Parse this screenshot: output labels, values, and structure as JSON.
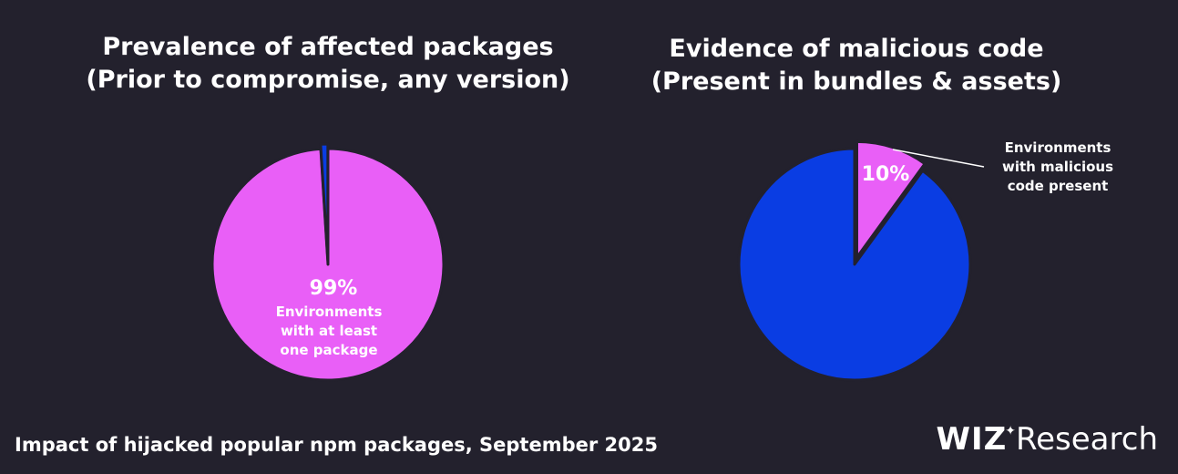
{
  "charts": {
    "left": {
      "title_line1": "Prevalence of affected packages",
      "title_line2": "(Prior to compromise, any version)"
    },
    "right": {
      "title_line1": "Evidence of malicious code",
      "title_line2": "(Present in bundles & assets)"
    }
  },
  "chart_data": [
    {
      "type": "pie",
      "title": "Prevalence of affected packages (Prior to compromise, any version)",
      "slices": [
        {
          "label": "Environments with at least one package",
          "value": 99,
          "display": "99%",
          "color": "#e95ff7"
        },
        {
          "label": "",
          "value": 1,
          "display": "",
          "color": "#0a3de3"
        }
      ],
      "center_label": {
        "value": "99%",
        "lines": [
          "Environments",
          "with at least",
          "one package"
        ]
      }
    },
    {
      "type": "pie",
      "title": "Evidence of malicious code (Present in bundles & assets)",
      "slices": [
        {
          "label": "Environments with malicious code present",
          "value": 10,
          "display": "10%",
          "color": "#e95ff7"
        },
        {
          "label": "",
          "value": 90,
          "display": "",
          "color": "#0a3de3"
        }
      ],
      "callout": {
        "value": "10%",
        "lines": [
          "Environments",
          "with malicious",
          "code present"
        ]
      }
    }
  ],
  "footer": {
    "caption": "Impact of hijacked popular npm packages, September 2025",
    "brand_wiz": "WIZ",
    "brand_spark": "✦",
    "brand_research": "Research"
  },
  "colors": {
    "background": "#23212d",
    "pink": "#e95ff7",
    "blue": "#0a3de3",
    "text": "#ffffff"
  }
}
